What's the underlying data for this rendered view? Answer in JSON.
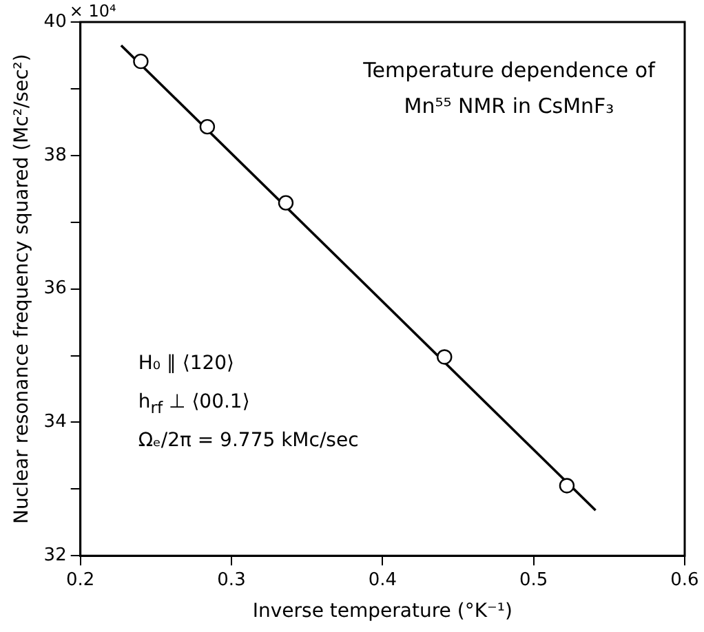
{
  "chart_data": {
    "type": "scatter",
    "title": "Temperature dependence of Mn⁵⁵ NMR in CsMnF₃",
    "xlabel": "Inverse temperature (°K⁻¹)",
    "ylabel": "Nuclear resonance frequency squared (Mc²/sec²)",
    "annotations": [
      "× 10⁴",
      "H₀ ∥ ⟨120⟩",
      "h$_{rf}$ ⊥ ⟨00.1⟩",
      "Ωₑ/2π = 9.775 kMc/sec"
    ],
    "series": [
      {
        "type": "scatter",
        "color": "#000000",
        "marker": "circle",
        "x": [
          0.24,
          0.284,
          0.336,
          0.441,
          0.522
        ],
        "values": [
          39.41,
          38.43,
          37.29,
          34.98,
          33.05
        ]
      },
      {
        "type": "line",
        "color": "#000000",
        "marker": "none",
        "line_style": "solid",
        "x": [
          0.227,
          0.541
        ],
        "values": [
          39.65,
          32.68
        ]
      }
    ],
    "xlim": [
      0.2,
      0.6
    ],
    "xticks": [
      0.2,
      0.3,
      0.4,
      0.5,
      0.6
    ],
    "ylim": [
      32,
      40
    ],
    "yticks": [
      32,
      {
        "value": 33,
        "label": null
      },
      34,
      {
        "value": 35,
        "label": null
      },
      36,
      {
        "value": 37,
        "label": null
      },
      38,
      {
        "value": 39,
        "label": null
      },
      40
    ],
    "grid": false,
    "legend": false
  }
}
